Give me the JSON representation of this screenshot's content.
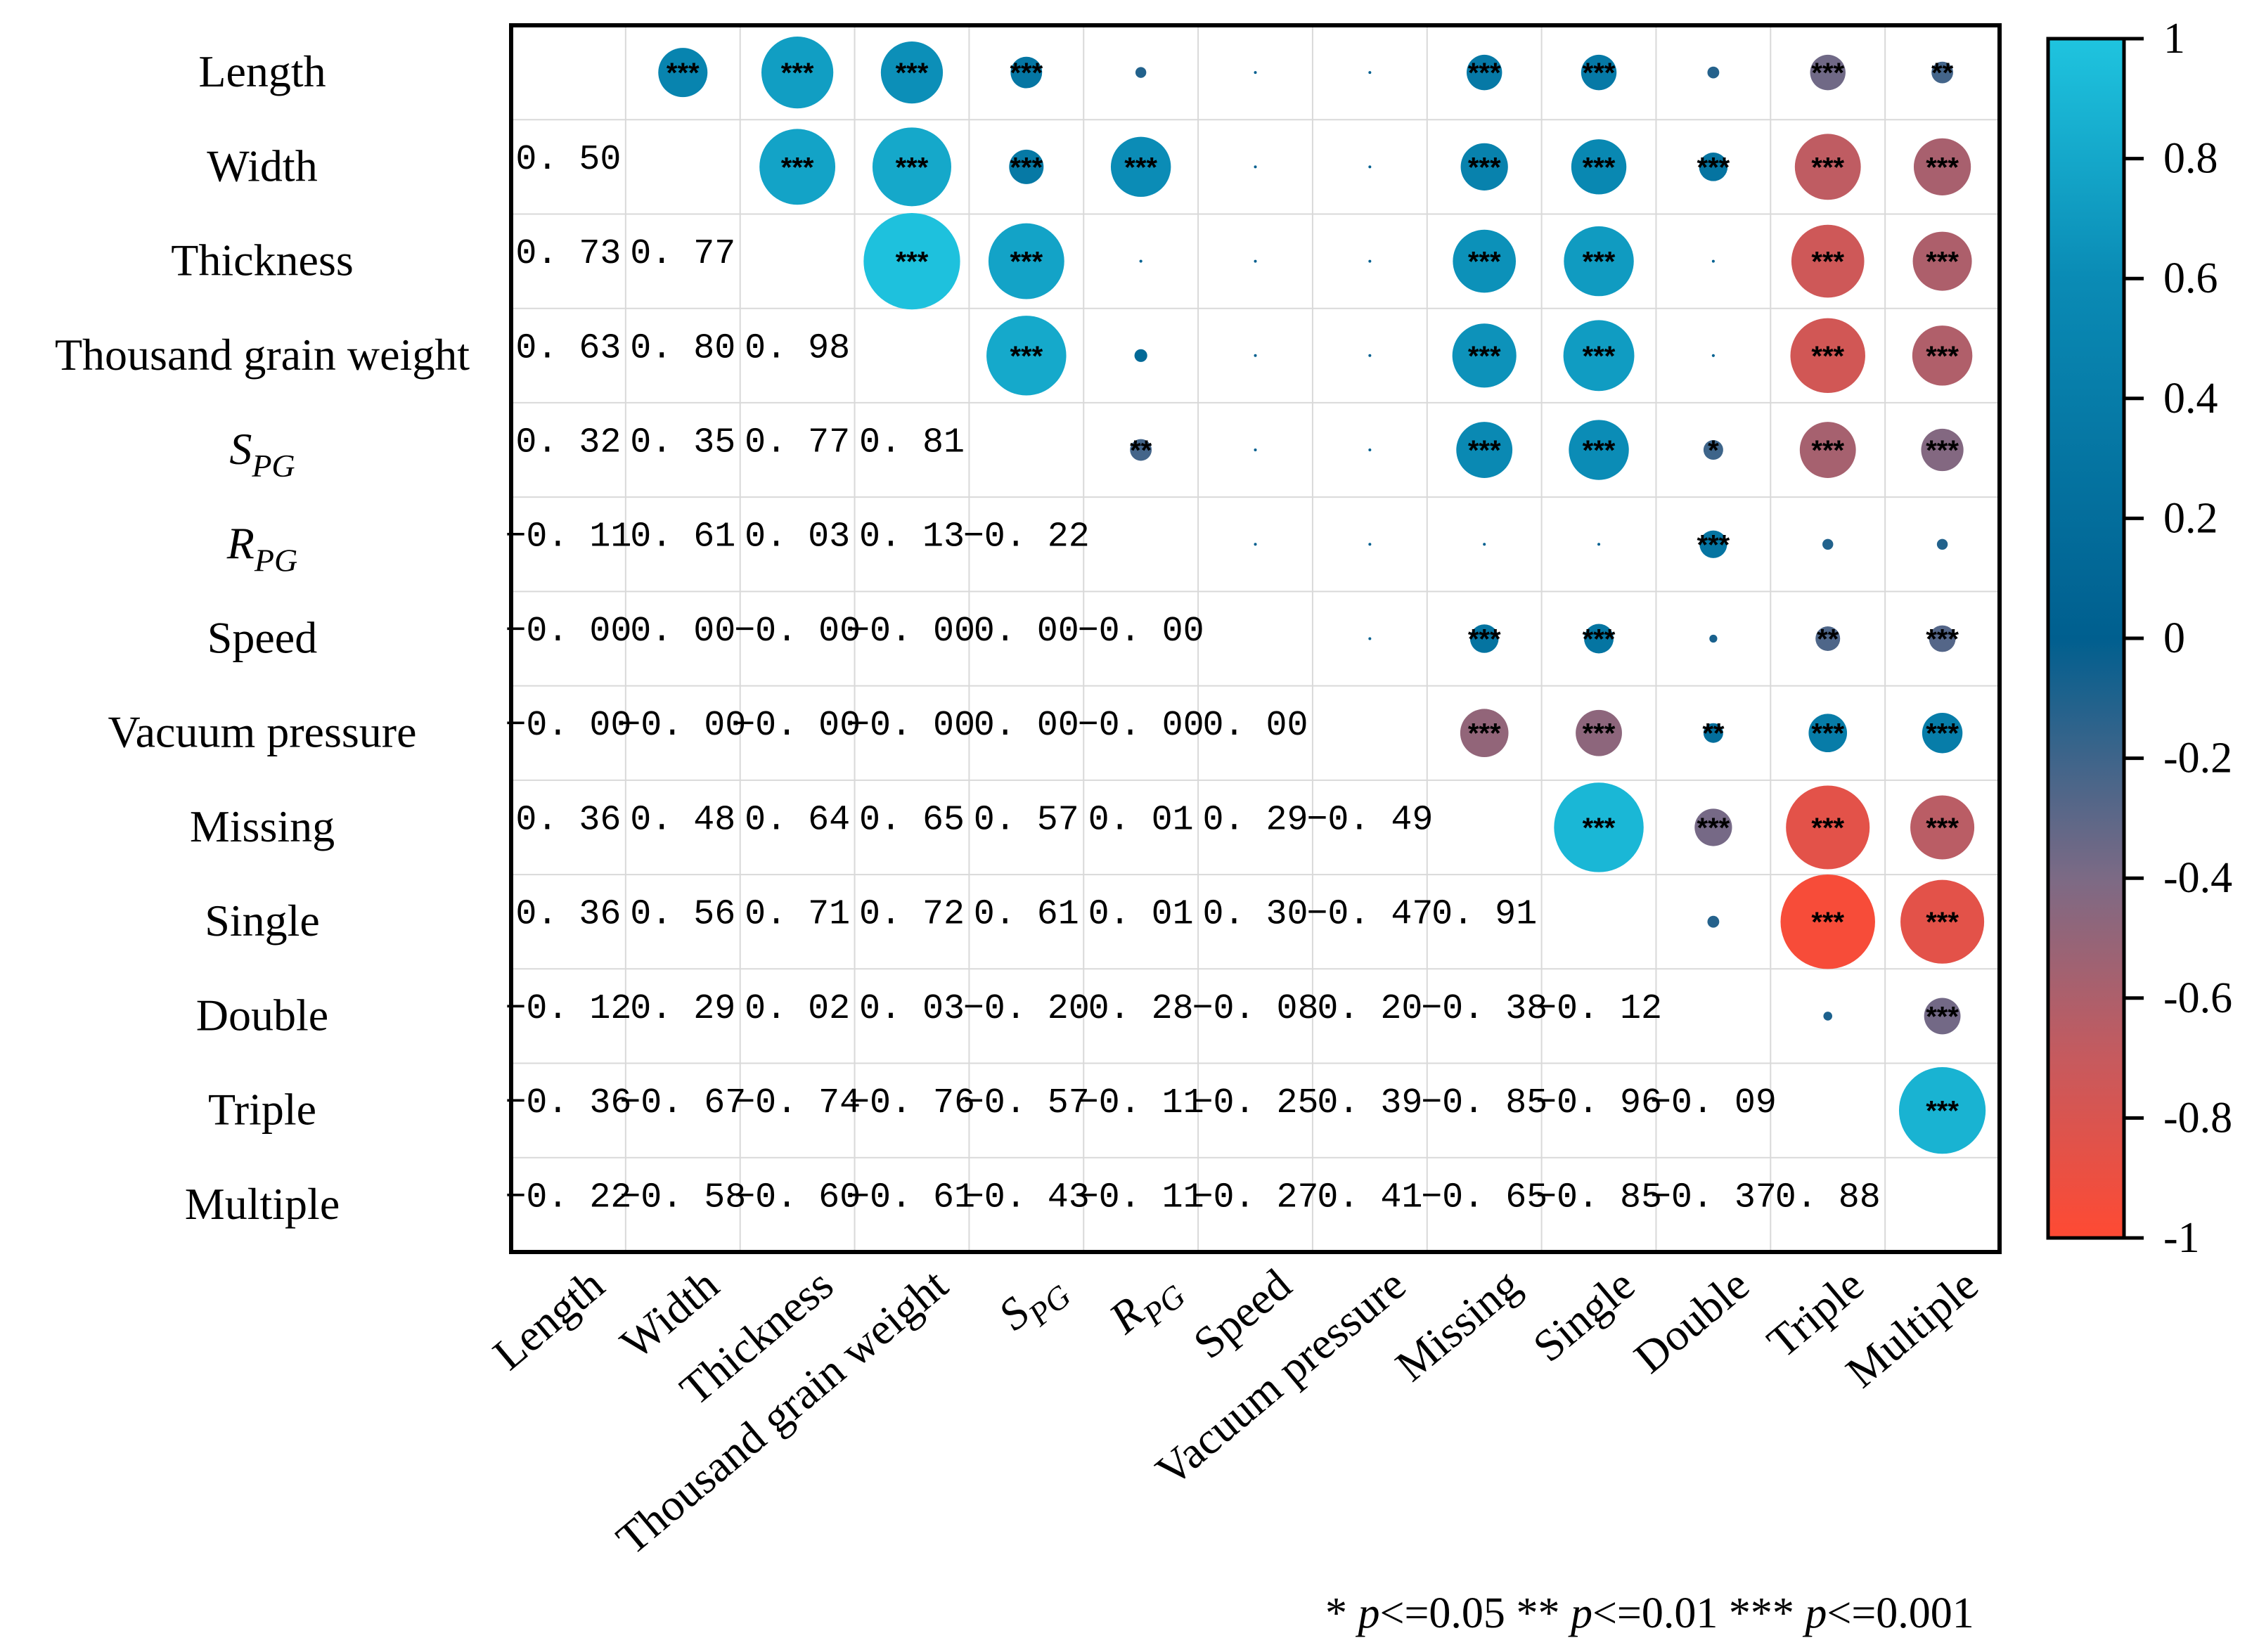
{
  "chart_data": {
    "type": "heatmap",
    "subtype": "correlation-matrix",
    "variables": [
      "Length",
      "Width",
      "Thickness",
      "Thousand  grain weight",
      "S_PG",
      "R_PG",
      "Speed",
      "Vacuum pressure",
      "Missing",
      "Single",
      "Double",
      "Triple",
      "Multiple"
    ],
    "labels": [
      {
        "main": "Length",
        "sub": ""
      },
      {
        "main": "Width",
        "sub": ""
      },
      {
        "main": "Thickness",
        "sub": ""
      },
      {
        "main": "Thousand  grain weight",
        "sub": ""
      },
      {
        "main": "S",
        "sub": "PG"
      },
      {
        "main": "R",
        "sub": "PG"
      },
      {
        "main": "Speed",
        "sub": ""
      },
      {
        "main": "Vacuum pressure",
        "sub": ""
      },
      {
        "main": "Missing",
        "sub": ""
      },
      {
        "main": "Single",
        "sub": ""
      },
      {
        "main": "Double",
        "sub": ""
      },
      {
        "main": "Triple",
        "sub": ""
      },
      {
        "main": "Multiple",
        "sub": ""
      }
    ],
    "lower_triangle_text": [
      [],
      [
        "0. 50"
      ],
      [
        "0. 73",
        "0. 77"
      ],
      [
        "0. 63",
        "0. 80",
        "0. 98"
      ],
      [
        "0. 32",
        "0. 35",
        "0. 77",
        "0. 81"
      ],
      [
        "−0. 11",
        "0. 61",
        "0. 03",
        "0. 13",
        "−0. 22"
      ],
      [
        "−0. 00",
        "0. 00",
        "−0. 00",
        "−0. 00",
        "0. 00",
        "−0. 00"
      ],
      [
        "−0. 00",
        "−0. 00",
        "−0. 00",
        "−0. 00",
        "0. 00",
        "−0. 00",
        "0. 00"
      ],
      [
        "0. 36",
        "0. 48",
        "0. 64",
        "0. 65",
        "0. 57",
        "0. 01",
        "0. 29",
        "−0. 49"
      ],
      [
        "0. 36",
        "0. 56",
        "0. 71",
        "0. 72",
        "0. 61",
        "0. 01",
        "0. 30",
        "−0. 47",
        "0. 91"
      ],
      [
        "−0. 12",
        "0. 29",
        "0. 02",
        "0. 03",
        "−0. 20",
        "0. 28",
        "−0. 08",
        "0. 20",
        "−0. 38",
        "−0. 12"
      ],
      [
        "−0. 36",
        "−0. 67",
        "−0. 74",
        "−0. 76",
        "−0. 57",
        "−0. 11",
        "−0. 25",
        "0. 39",
        "−0. 85",
        "−0. 96",
        "−0. 09"
      ],
      [
        "−0. 22",
        "−0. 58",
        "−0. 60",
        "−0. 61",
        "−0. 43",
        "−0. 11",
        "−0. 27",
        "0. 41",
        "−0. 65",
        "−0. 85",
        "−0. 37",
        "0. 88"
      ]
    ],
    "significance_upper": [
      [
        "",
        "***",
        "***",
        "***",
        "***",
        "",
        "",
        "",
        "***",
        "***",
        "",
        "***",
        "**"
      ],
      [
        "",
        "",
        "***",
        "***",
        "***",
        "***",
        "",
        "",
        "***",
        "***",
        "***",
        "***",
        "***"
      ],
      [
        "",
        "",
        "",
        "***",
        "***",
        "",
        "",
        "",
        "***",
        "***",
        "",
        "***",
        "***"
      ],
      [
        "",
        "",
        "",
        "",
        "***",
        "",
        "",
        "",
        "***",
        "***",
        "",
        "***",
        "***"
      ],
      [
        "",
        "",
        "",
        "",
        "",
        "**",
        "",
        "",
        "***",
        "***",
        "*",
        "***",
        "***"
      ],
      [
        "",
        "",
        "",
        "",
        "",
        "",
        "",
        "",
        "",
        "",
        "***",
        "",
        ""
      ],
      [
        "",
        "",
        "",
        "",
        "",
        "",
        "",
        "",
        "***",
        "***",
        "",
        "**",
        "***"
      ],
      [
        "",
        "",
        "",
        "",
        "",
        "",
        "",
        "",
        "***",
        "***",
        "**",
        "***",
        "***"
      ],
      [
        "",
        "",
        "",
        "",
        "",
        "",
        "",
        "",
        "",
        "***",
        "***",
        "***",
        "***"
      ],
      [
        "",
        "",
        "",
        "",
        "",
        "",
        "",
        "",
        "",
        "",
        "",
        "***",
        "***"
      ],
      [
        "",
        "",
        "",
        "",
        "",
        "",
        "",
        "",
        "",
        "",
        "",
        "",
        "***"
      ],
      [
        "",
        "",
        "",
        "",
        "",
        "",
        "",
        "",
        "",
        "",
        "",
        "",
        "***"
      ],
      [
        "",
        "",
        "",
        "",
        "",
        "",
        "",
        "",
        "",
        "",
        "",
        "",
        ""
      ]
    ],
    "colorbar": {
      "min": -1,
      "max": 1,
      "ticks": [
        "1",
        "0.8",
        "0.6",
        "0.4",
        "0.2",
        "0",
        "-0.2",
        "-0.4",
        "-0.6",
        "-0.8",
        "-1"
      ],
      "colors": [
        "#ff4a33",
        "#c65a5e",
        "#7c6a85",
        "#005f8f",
        "#0a8bb5",
        "#1fc4df"
      ]
    },
    "legend_text": [
      {
        "stars": "* ",
        "p": "p",
        "cond": "<=0.05"
      },
      {
        "stars": "** ",
        "p": "p",
        "cond": "<=0.01"
      },
      {
        "stars": "*** ",
        "p": "p",
        "cond": "<=0.001"
      }
    ]
  }
}
